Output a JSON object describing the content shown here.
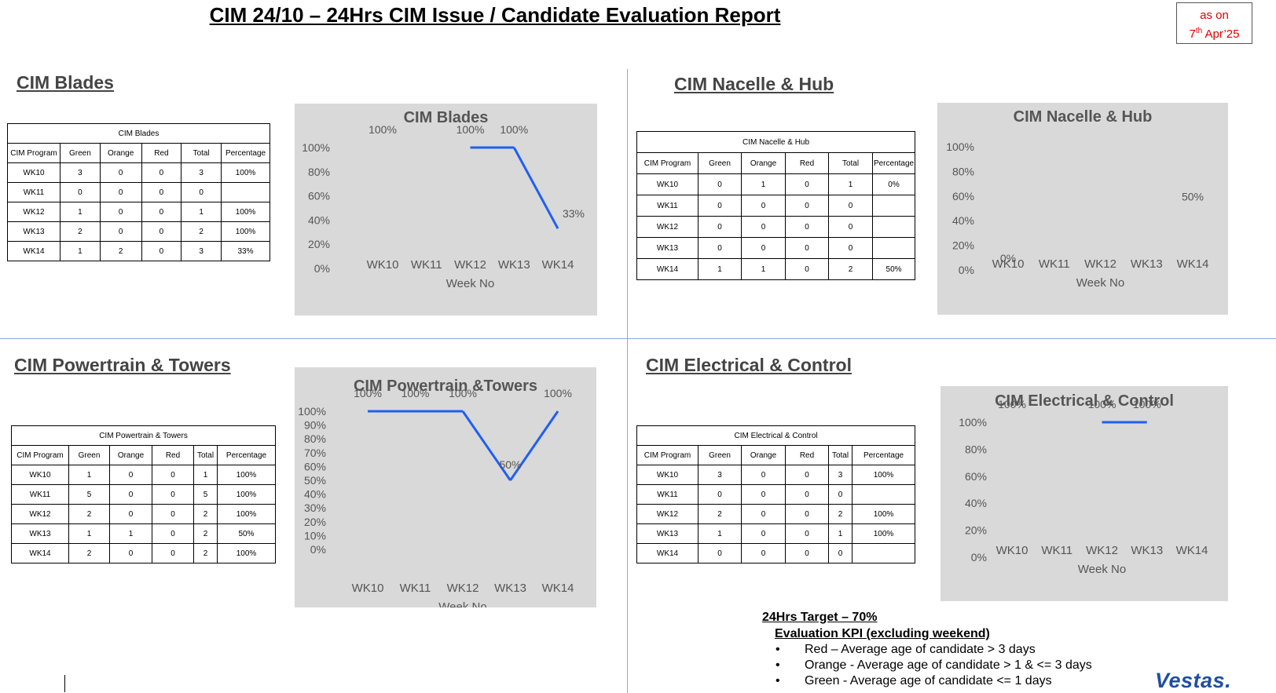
{
  "report": {
    "title": "CIM 24/10 – 24Hrs CIM Issue / Candidate Evaluation Report ",
    "as_on_line1": "as on",
    "as_on_day": "7",
    "as_on_sup": "th",
    "as_on_rest": " Apr’25"
  },
  "columns": [
    "CIM Program",
    "Green",
    "Orange",
    "Red",
    "Total",
    "Percentage"
  ],
  "sections": {
    "blades": {
      "heading": "CIM Blades",
      "table_caption": "CIM Blades",
      "rows": [
        [
          "WK10",
          "3",
          "0",
          "0",
          "3",
          "100%"
        ],
        [
          "WK11",
          "0",
          "0",
          "0",
          "0",
          ""
        ],
        [
          "WK12",
          "1",
          "0",
          "0",
          "1",
          "100%"
        ],
        [
          "WK13",
          "2",
          "0",
          "0",
          "2",
          "100%"
        ],
        [
          "WK14",
          "1",
          "2",
          "0",
          "3",
          "33%"
        ]
      ]
    },
    "nacelle": {
      "heading": "CIM Nacelle & Hub",
      "table_caption": "CIM Nacelle & Hub",
      "rows": [
        [
          "WK10",
          "0",
          "1",
          "0",
          "1",
          "0%"
        ],
        [
          "WK11",
          "0",
          "0",
          "0",
          "0",
          ""
        ],
        [
          "WK12",
          "0",
          "0",
          "0",
          "0",
          ""
        ],
        [
          "WK13",
          "0",
          "0",
          "0",
          "0",
          ""
        ],
        [
          "WK14",
          "1",
          "1",
          "0",
          "2",
          "50%"
        ]
      ]
    },
    "powertrain": {
      "heading": "CIM Powertrain & Towers",
      "table_caption": "CIM Powertrain & Towers",
      "rows": [
        [
          "WK10",
          "1",
          "0",
          "0",
          "1",
          "100%"
        ],
        [
          "WK11",
          "5",
          "0",
          "0",
          "5",
          "100%"
        ],
        [
          "WK12",
          "2",
          "0",
          "0",
          "2",
          "100%"
        ],
        [
          "WK13",
          "1",
          "1",
          "0",
          "2",
          "50%"
        ],
        [
          "WK14",
          "2",
          "0",
          "0",
          "2",
          "100%"
        ]
      ]
    },
    "electrical": {
      "heading": "CIM Electrical & Control",
      "table_caption": "CIM Electrical & Control",
      "rows": [
        [
          "WK10",
          "3",
          "0",
          "0",
          "3",
          "100%"
        ],
        [
          "WK11",
          "0",
          "0",
          "0",
          "0",
          ""
        ],
        [
          "WK12",
          "2",
          "0",
          "0",
          "2",
          "100%"
        ],
        [
          "WK13",
          "1",
          "0",
          "0",
          "1",
          "100%"
        ],
        [
          "WK14",
          "0",
          "0",
          "0",
          "0",
          ""
        ]
      ]
    }
  },
  "chart_data": [
    {
      "id": "blades",
      "type": "line",
      "title": "CIM Blades",
      "xlabel": "Week No",
      "ylabel": "",
      "categories": [
        "WK10",
        "WK11",
        "WK12",
        "WK13",
        "WK14"
      ],
      "values": [
        1.0,
        null,
        1.0,
        1.0,
        0.33
      ],
      "data_labels": [
        "100%",
        "",
        "100%",
        "100%",
        "33%"
      ],
      "yticks": [
        "0%",
        "20%",
        "40%",
        "60%",
        "80%",
        "100%"
      ],
      "ylim": [
        0,
        1
      ],
      "line_color": "#1f5ff5"
    },
    {
      "id": "nacelle",
      "type": "line",
      "title": "CIM Nacelle & Hub",
      "xlabel": "Week No",
      "ylabel": "",
      "categories": [
        "WK10",
        "WK11",
        "WK12",
        "WK13",
        "WK14"
      ],
      "values": [
        0.0,
        null,
        null,
        null,
        0.5
      ],
      "data_labels": [
        "0%",
        "",
        "",
        "",
        "50%"
      ],
      "yticks": [
        "0%",
        "20%",
        "40%",
        "60%",
        "80%",
        "100%"
      ],
      "ylim": [
        0,
        1
      ],
      "line_color": "#1f5ff5"
    },
    {
      "id": "powertrain",
      "type": "line",
      "title": "CIM Powertrain &Towers",
      "xlabel": "Week No",
      "ylabel": "",
      "categories": [
        "WK10",
        "WK11",
        "WK12",
        "WK13",
        "WK14"
      ],
      "values": [
        1.0,
        1.0,
        1.0,
        0.5,
        1.0
      ],
      "data_labels": [
        "100%",
        "100%",
        "100%",
        "50%",
        "100%"
      ],
      "yticks": [
        "0%",
        "10%",
        "20%",
        "30%",
        "40%",
        "50%",
        "60%",
        "70%",
        "80%",
        "90%",
        "100%"
      ],
      "ylim": [
        0,
        1
      ],
      "line_color": "#1f5ff5"
    },
    {
      "id": "electrical",
      "type": "line",
      "title": "CIM Electrical & Control",
      "xlabel": "Week No",
      "ylabel": "",
      "categories": [
        "WK10",
        "WK11",
        "WK12",
        "WK13",
        "WK14"
      ],
      "values": [
        1.0,
        null,
        1.0,
        1.0,
        null
      ],
      "data_labels": [
        "100%",
        "",
        "100%",
        "100%",
        ""
      ],
      "yticks": [
        "0%",
        "20%",
        "40%",
        "60%",
        "80%",
        "100%"
      ],
      "ylim": [
        0,
        1
      ],
      "line_color": "#1f5ff5"
    }
  ],
  "kpi": {
    "target": "24Hrs Target – 70%",
    "heading": "Evaluation KPI (excluding weekend)",
    "items": [
      "Red – Average age of candidate > 3 days",
      "Orange - Average age of candidate > 1 & <= 3 days",
      "Green - Average age of candidate <= 1 days"
    ]
  },
  "brand": {
    "logo": "Vestas."
  }
}
